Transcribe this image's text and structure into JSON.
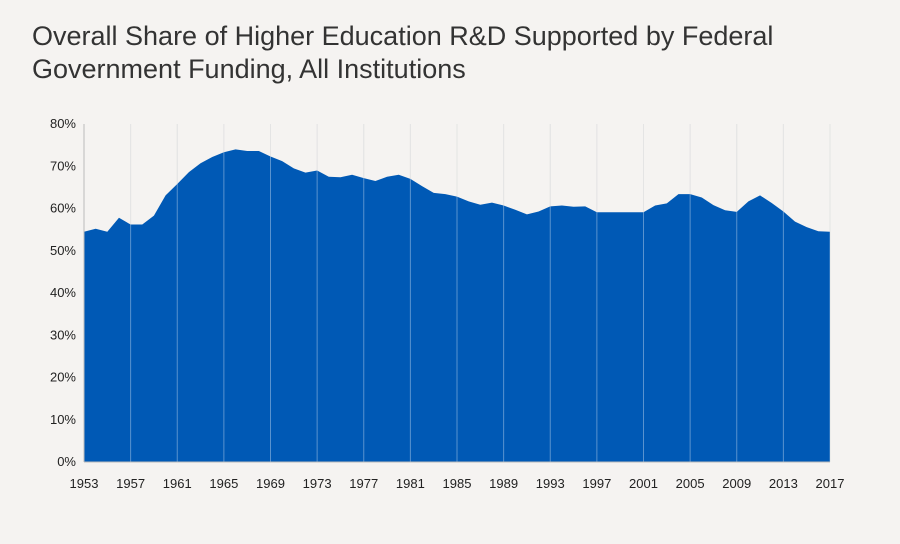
{
  "chart_data": {
    "type": "area",
    "title": "Overall Share of Higher Education R&D Supported by Federal Government Funding, All Institutions",
    "xlabel": "",
    "ylabel": "",
    "x": [
      1953,
      1954,
      1955,
      1956,
      1957,
      1958,
      1959,
      1960,
      1961,
      1962,
      1963,
      1964,
      1965,
      1966,
      1967,
      1968,
      1969,
      1970,
      1971,
      1972,
      1973,
      1974,
      1975,
      1976,
      1977,
      1978,
      1979,
      1980,
      1981,
      1982,
      1983,
      1984,
      1985,
      1986,
      1987,
      1988,
      1989,
      1990,
      1991,
      1992,
      1993,
      1994,
      1995,
      1996,
      1997,
      1998,
      1999,
      2000,
      2001,
      2002,
      2003,
      2004,
      2005,
      2006,
      2007,
      2008,
      2009,
      2010,
      2011,
      2012,
      2013,
      2014,
      2015,
      2016,
      2017
    ],
    "values": [
      54.5,
      55.2,
      54.5,
      57.8,
      56.2,
      56.2,
      58.3,
      63.1,
      65.8,
      68.6,
      70.7,
      72.2,
      73.3,
      74.0,
      73.6,
      73.6,
      72.3,
      71.2,
      69.5,
      68.5,
      69.0,
      67.5,
      67.4,
      68.0,
      67.2,
      66.5,
      67.5,
      68.0,
      67.0,
      65.3,
      63.7,
      63.4,
      62.8,
      61.7,
      60.9,
      61.4,
      60.7,
      59.7,
      58.6,
      59.3,
      60.5,
      60.7,
      60.4,
      60.5,
      59.1,
      59.1,
      59.1,
      59.1,
      59.1,
      60.7,
      61.2,
      63.4,
      63.4,
      62.6,
      60.8,
      59.6,
      59.2,
      61.7,
      63.1,
      61.3,
      59.3,
      56.9,
      55.6,
      54.6,
      54.5
    ],
    "unit": "%",
    "ylim": [
      0,
      80
    ],
    "y_ticks": [
      "0%",
      "10%",
      "20%",
      "30%",
      "40%",
      "50%",
      "60%",
      "70%",
      "80%"
    ],
    "x_ticks": [
      "1953",
      "1957",
      "1961",
      "1965",
      "1969",
      "1973",
      "1977",
      "1981",
      "1985",
      "1989",
      "1993",
      "1997",
      "2001",
      "2005",
      "2009",
      "2013",
      "2017"
    ],
    "grid": "vertical",
    "legend": "none",
    "colors": {
      "fill": "#0059b5",
      "grid": "#d6d6d6",
      "background": "#f5f3f1"
    }
  }
}
